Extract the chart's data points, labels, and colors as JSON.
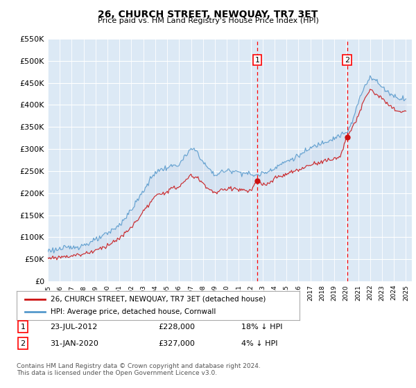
{
  "title": "26, CHURCH STREET, NEWQUAY, TR7 3ET",
  "subtitle": "Price paid vs. HM Land Registry's House Price Index (HPI)",
  "ylim": [
    0,
    550000
  ],
  "yticks": [
    0,
    50000,
    100000,
    150000,
    200000,
    250000,
    300000,
    350000,
    400000,
    450000,
    500000,
    550000
  ],
  "ytick_labels": [
    "£0",
    "£50K",
    "£100K",
    "£150K",
    "£200K",
    "£250K",
    "£300K",
    "£350K",
    "£400K",
    "£450K",
    "£500K",
    "£550K"
  ],
  "xlim_start": 1995.0,
  "xlim_end": 2025.5,
  "plot_bg_color": "#dce9f5",
  "grid_color": "#ffffff",
  "red_line_color": "#cc1111",
  "blue_line_color": "#5599cc",
  "transaction1_x": 2012.55,
  "transaction1_y": 228000,
  "transaction1_label": "23-JUL-2012",
  "transaction1_price": "£228,000",
  "transaction1_note": "18% ↓ HPI",
  "transaction2_x": 2020.08,
  "transaction2_y": 327000,
  "transaction2_label": "31-JAN-2020",
  "transaction2_price": "£327,000",
  "transaction2_note": "4% ↓ HPI",
  "legend_line1": "26, CHURCH STREET, NEWQUAY, TR7 3ET (detached house)",
  "legend_line2": "HPI: Average price, detached house, Cornwall",
  "footer": "Contains HM Land Registry data © Crown copyright and database right 2024.\nThis data is licensed under the Open Government Licence v3.0."
}
